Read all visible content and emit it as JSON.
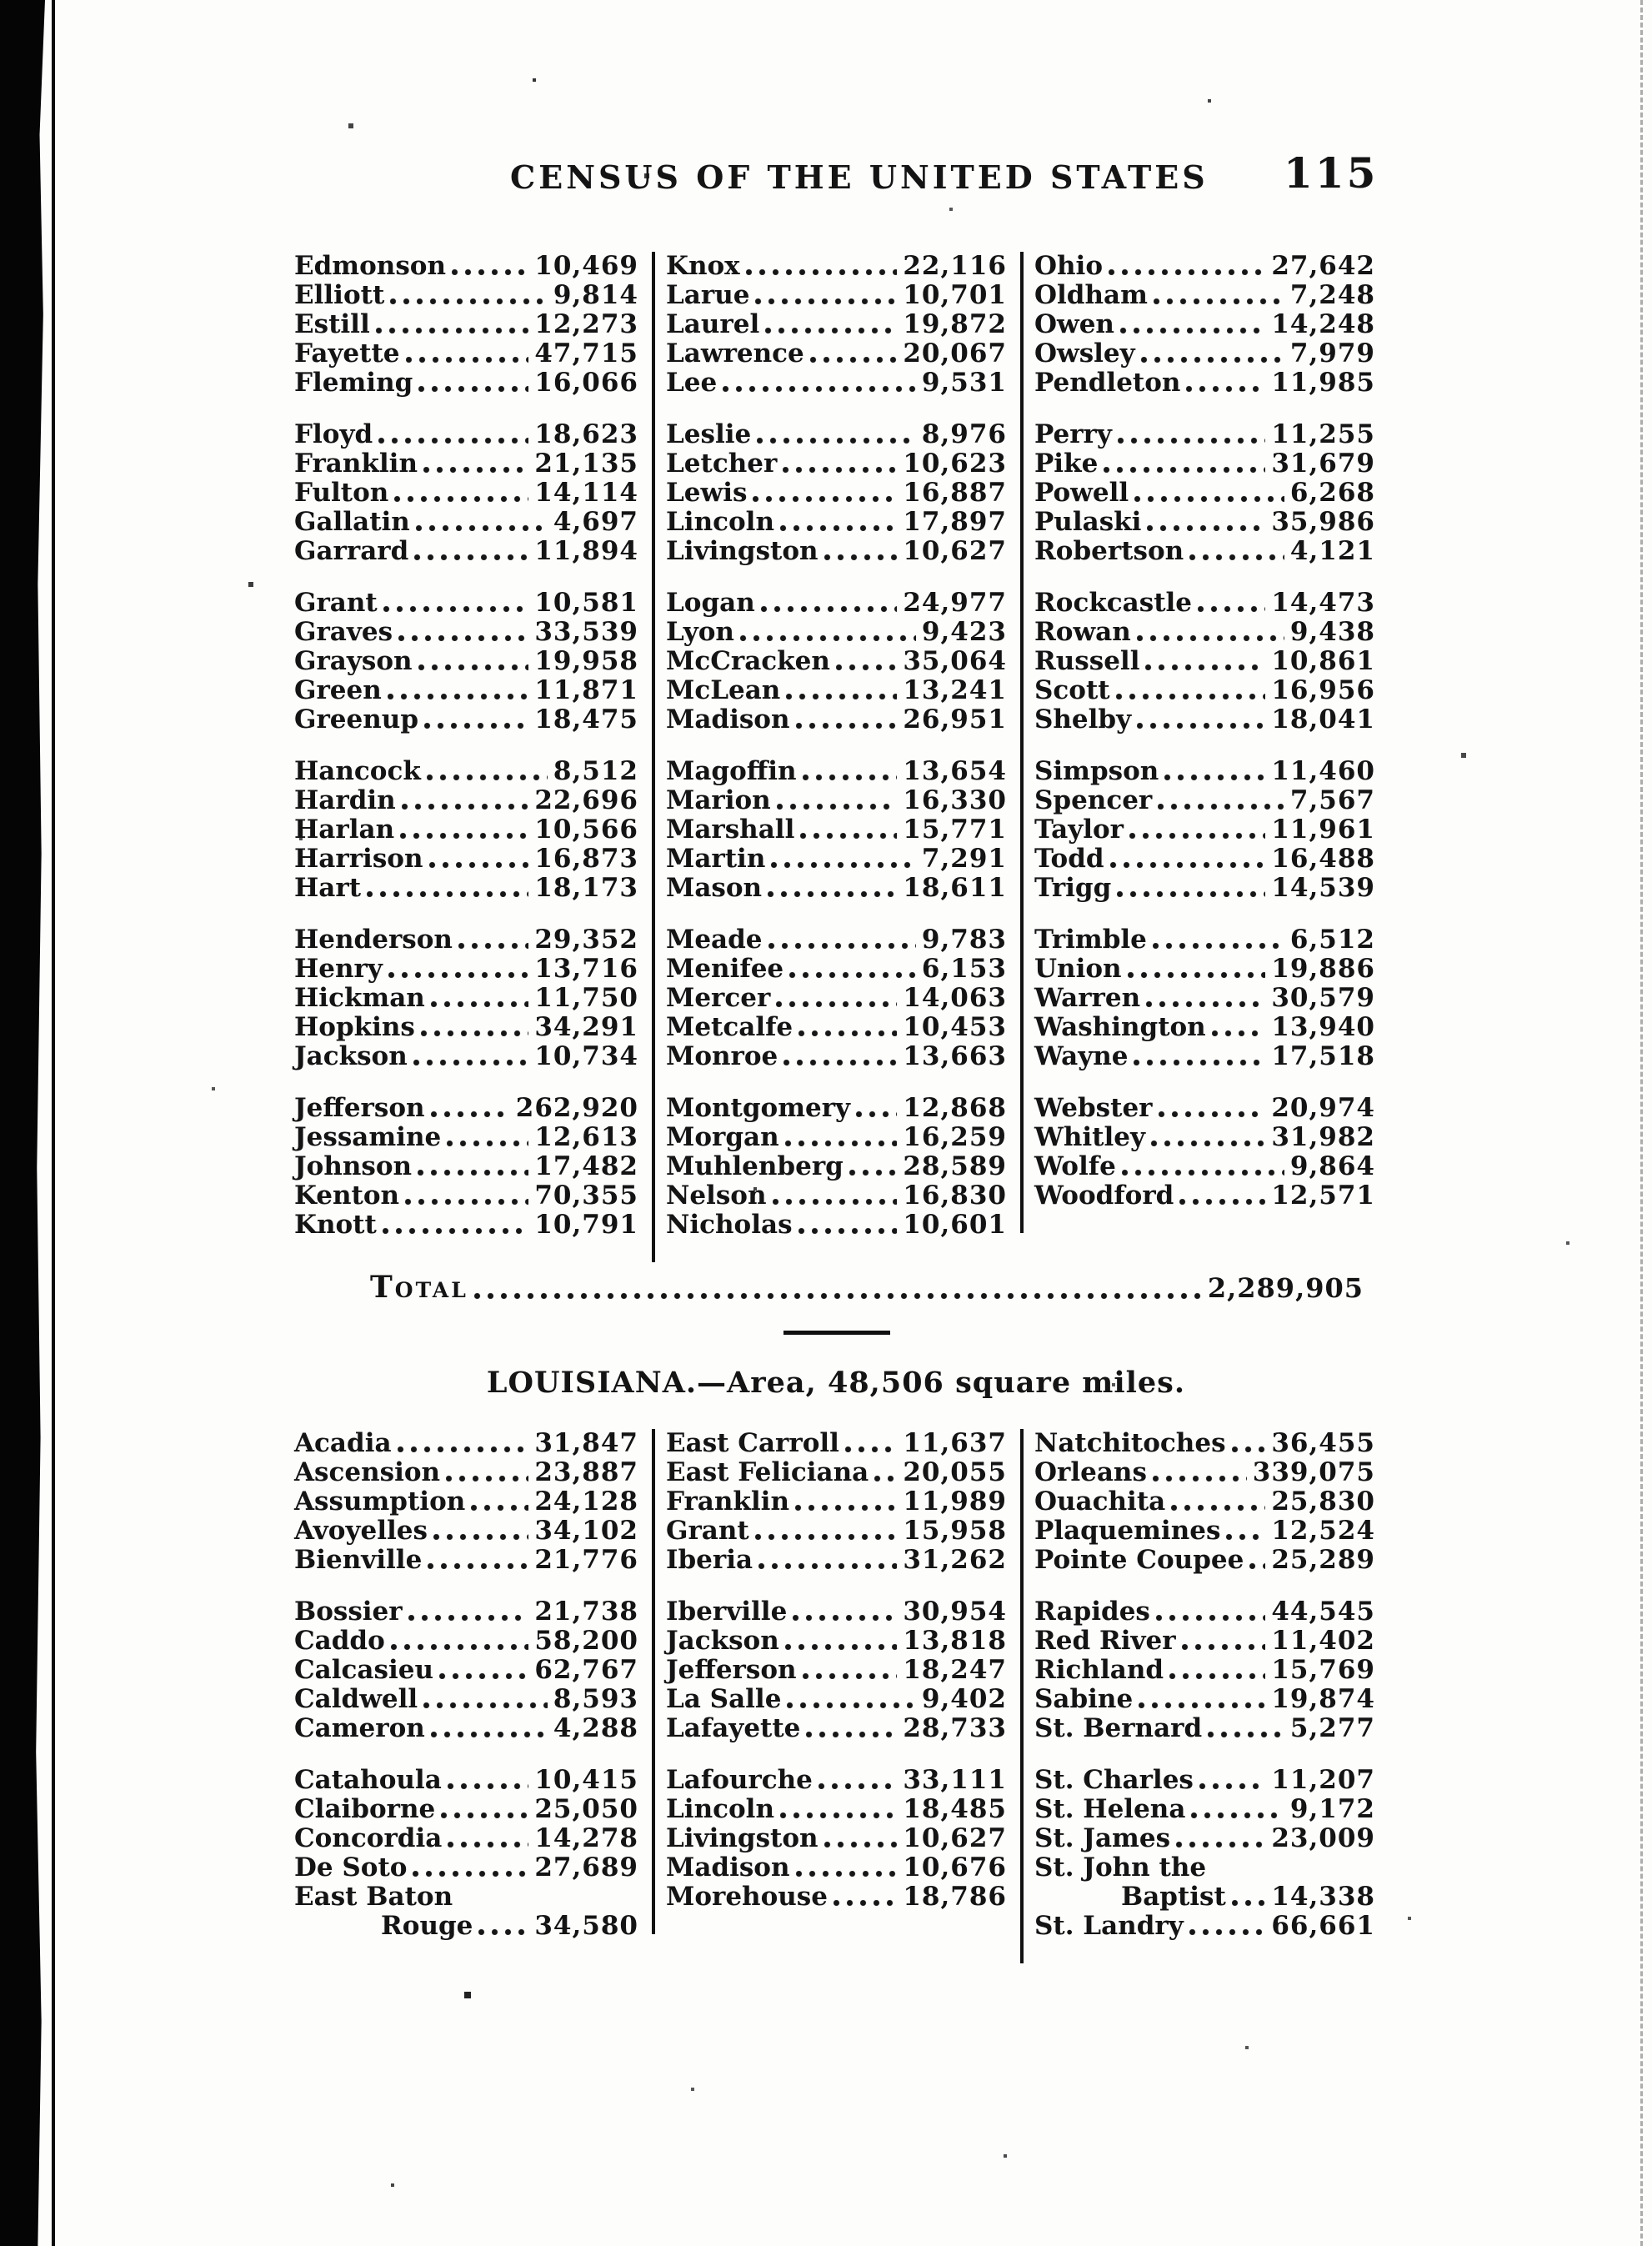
{
  "header": {
    "title": "CENSUS OF THE UNITED STATES",
    "page_number": "115"
  },
  "kentucky_table": {
    "columns": [
      {
        "groups": [
          [
            {
              "n": "Edmonson",
              "v": "10,469"
            },
            {
              "n": "Elliott",
              "v": "9,814"
            },
            {
              "n": "Estill",
              "v": "12,273"
            },
            {
              "n": "Fayette",
              "v": "47,715"
            },
            {
              "n": "Fleming",
              "v": "16,066"
            }
          ],
          [
            {
              "n": "Floyd",
              "v": "18,623"
            },
            {
              "n": "Franklin",
              "v": "21,135"
            },
            {
              "n": "Fulton",
              "v": "14,114"
            },
            {
              "n": "Gallatin",
              "v": "4,697"
            },
            {
              "n": "Garrard",
              "v": "11,894"
            }
          ],
          [
            {
              "n": "Grant",
              "v": "10,581"
            },
            {
              "n": "Graves",
              "v": "33,539"
            },
            {
              "n": "Grayson",
              "v": "19,958"
            },
            {
              "n": "Green",
              "v": "11,871"
            },
            {
              "n": "Greenup",
              "v": "18,475"
            }
          ],
          [
            {
              "n": "Hancock",
              "v": "8,512"
            },
            {
              "n": "Hardin",
              "v": "22,696"
            },
            {
              "n": "Harlan",
              "v": "10,566"
            },
            {
              "n": "Harrison",
              "v": "16,873"
            },
            {
              "n": "Hart",
              "v": "18,173"
            }
          ],
          [
            {
              "n": "Henderson",
              "v": "29,352"
            },
            {
              "n": "Henry",
              "v": "13,716"
            },
            {
              "n": "Hickman",
              "v": "11,750"
            },
            {
              "n": "Hopkins",
              "v": "34,291"
            },
            {
              "n": "Jackson",
              "v": "10,734"
            }
          ],
          [
            {
              "n": "Jefferson",
              "v": "262,920"
            },
            {
              "n": "Jessamine",
              "v": "12,613"
            },
            {
              "n": "Johnson",
              "v": "17,482"
            },
            {
              "n": "Kenton",
              "v": "70,355"
            },
            {
              "n": "Knott",
              "v": "10,791"
            }
          ]
        ]
      },
      {
        "groups": [
          [
            {
              "n": "Knox",
              "v": "22,116"
            },
            {
              "n": "Larue",
              "v": "10,701"
            },
            {
              "n": "Laurel",
              "v": "19,872"
            },
            {
              "n": "Lawrence",
              "v": "20,067"
            },
            {
              "n": "Lee",
              "v": "9,531"
            }
          ],
          [
            {
              "n": "Leslie",
              "v": "8,976"
            },
            {
              "n": "Letcher",
              "v": "10,623"
            },
            {
              "n": "Lewis",
              "v": "16,887"
            },
            {
              "n": "Lincoln",
              "v": "17,897"
            },
            {
              "n": "Livingston",
              "v": "10,627"
            }
          ],
          [
            {
              "n": "Logan",
              "v": "24,977"
            },
            {
              "n": "Lyon",
              "v": "9,423"
            },
            {
              "n": "McCracken",
              "v": "35,064"
            },
            {
              "n": "McLean",
              "v": "13,241"
            },
            {
              "n": "Madison",
              "v": "26,951"
            }
          ],
          [
            {
              "n": "Magoffin",
              "v": "13,654"
            },
            {
              "n": "Marion",
              "v": "16,330"
            },
            {
              "n": "Marshall",
              "v": "15,771"
            },
            {
              "n": "Martin",
              "v": "7,291"
            },
            {
              "n": "Mason",
              "v": "18,611"
            }
          ],
          [
            {
              "n": "Meade",
              "v": "9,783"
            },
            {
              "n": "Menifee",
              "v": "6,153"
            },
            {
              "n": "Mercer",
              "v": "14,063"
            },
            {
              "n": "Metcalfe",
              "v": "10,453"
            },
            {
              "n": "Monroe",
              "v": "13,663"
            }
          ],
          [
            {
              "n": "Montgomery",
              "v": "12,868"
            },
            {
              "n": "Morgan",
              "v": "16,259"
            },
            {
              "n": "Muhlenberg",
              "v": "28,589"
            },
            {
              "n": "Nelson",
              "v": "16,830"
            },
            {
              "n": "Nicholas",
              "v": "10,601"
            }
          ]
        ]
      },
      {
        "groups": [
          [
            {
              "n": "Ohio",
              "v": "27,642"
            },
            {
              "n": "Oldham",
              "v": "7,248"
            },
            {
              "n": "Owen",
              "v": "14,248"
            },
            {
              "n": "Owsley",
              "v": "7,979"
            },
            {
              "n": "Pendleton",
              "v": "11,985"
            }
          ],
          [
            {
              "n": "Perry",
              "v": "11,255"
            },
            {
              "n": "Pike",
              "v": "31,679"
            },
            {
              "n": "Powell",
              "v": "6,268"
            },
            {
              "n": "Pulaski",
              "v": "35,986"
            },
            {
              "n": "Robertson",
              "v": "4,121"
            }
          ],
          [
            {
              "n": "Rockcastle",
              "v": "14,473"
            },
            {
              "n": "Rowan",
              "v": "9,438"
            },
            {
              "n": "Russell",
              "v": "10,861"
            },
            {
              "n": "Scott",
              "v": "16,956"
            },
            {
              "n": "Shelby",
              "v": "18,041"
            }
          ],
          [
            {
              "n": "Simpson",
              "v": "11,460"
            },
            {
              "n": "Spencer",
              "v": "7,567"
            },
            {
              "n": "Taylor",
              "v": "11,961"
            },
            {
              "n": "Todd",
              "v": "16,488"
            },
            {
              "n": "Trigg",
              "v": "14,539"
            }
          ],
          [
            {
              "n": "Trimble",
              "v": "6,512"
            },
            {
              "n": "Union",
              "v": "19,886"
            },
            {
              "n": "Warren",
              "v": "30,579"
            },
            {
              "n": "Washington",
              "v": "13,940"
            },
            {
              "n": "Wayne",
              "v": "17,518"
            }
          ],
          [
            {
              "n": "Webster",
              "v": "20,974"
            },
            {
              "n": "Whitley",
              "v": "31,982"
            },
            {
              "n": "Wolfe",
              "v": "9,864"
            },
            {
              "n": "Woodford",
              "v": "12,571"
            }
          ]
        ]
      }
    ]
  },
  "total": {
    "label": "Total",
    "value": "2,289,905"
  },
  "louisiana": {
    "heading": "LOUISIANA.—Area, 48,506 square miles."
  },
  "louisiana_table": {
    "columns": [
      {
        "groups": [
          [
            {
              "n": "Acadia",
              "v": "31,847"
            },
            {
              "n": "Ascension",
              "v": "23,887"
            },
            {
              "n": "Assumption",
              "v": "24,128"
            },
            {
              "n": "Avoyelles",
              "v": "34,102"
            },
            {
              "n": "Bienville",
              "v": "21,776"
            }
          ],
          [
            {
              "n": "Bossier",
              "v": "21,738"
            },
            {
              "n": "Caddo",
              "v": "58,200"
            },
            {
              "n": "Calcasieu",
              "v": "62,767"
            },
            {
              "n": "Caldwell",
              "v": "8,593"
            },
            {
              "n": "Cameron",
              "v": "4,288"
            }
          ],
          [
            {
              "n": "Catahoula",
              "v": "10,415"
            },
            {
              "n": "Claiborne",
              "v": "25,050"
            },
            {
              "n": "Concordia",
              "v": "14,278"
            },
            {
              "n": "De Soto",
              "v": "27,689"
            },
            {
              "n": "East Baton",
              "wrap": "Rouge",
              "v": "34,580"
            }
          ]
        ]
      },
      {
        "groups": [
          [
            {
              "n": "East Carroll",
              "v": "11,637"
            },
            {
              "n": "East Feliciana",
              "v": "20,055"
            },
            {
              "n": "Franklin",
              "v": "11,989"
            },
            {
              "n": "Grant",
              "v": "15,958"
            },
            {
              "n": "Iberia",
              "v": "31,262"
            }
          ],
          [
            {
              "n": "Iberville",
              "v": "30,954"
            },
            {
              "n": "Jackson",
              "v": "13,818"
            },
            {
              "n": "Jefferson",
              "v": "18,247"
            },
            {
              "n": "La Salle",
              "v": "9,402"
            },
            {
              "n": "Lafayette",
              "v": "28,733"
            }
          ],
          [
            {
              "n": "Lafourche",
              "v": "33,111"
            },
            {
              "n": "Lincoln",
              "v": "18,485"
            },
            {
              "n": "Livingston",
              "v": "10,627"
            },
            {
              "n": "Madison",
              "v": "10,676"
            },
            {
              "n": "Morehouse",
              "v": "18,786"
            }
          ]
        ]
      },
      {
        "groups": [
          [
            {
              "n": "Natchitoches",
              "v": "36,455"
            },
            {
              "n": "Orleans",
              "v": "339,075"
            },
            {
              "n": "Ouachita",
              "v": "25,830"
            },
            {
              "n": "Plaquemines",
              "v": "12,524"
            },
            {
              "n": "Pointe Coupee",
              "v": "25,289"
            }
          ],
          [
            {
              "n": "Rapides",
              "v": "44,545"
            },
            {
              "n": "Red River",
              "v": "11,402"
            },
            {
              "n": "Richland",
              "v": "15,769"
            },
            {
              "n": "Sabine",
              "v": "19,874"
            },
            {
              "n": "St. Bernard",
              "v": "5,277"
            }
          ],
          [
            {
              "n": "St. Charles",
              "v": "11,207"
            },
            {
              "n": "St. Helena",
              "v": "9,172"
            },
            {
              "n": "St. James",
              "v": "23,009"
            },
            {
              "n": "St. John the",
              "wrap": "Baptist",
              "v": "14,338"
            },
            {
              "n": "St. Landry",
              "v": "66,661"
            }
          ]
        ]
      }
    ]
  }
}
